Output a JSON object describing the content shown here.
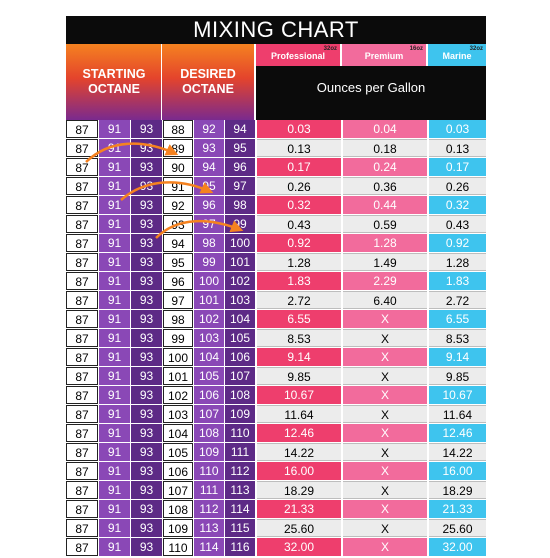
{
  "title": "MIXING CHART",
  "headers": {
    "starting": [
      "STARTING",
      "OCTANE"
    ],
    "desired": [
      "DESIRED",
      "OCTANE"
    ],
    "products": [
      {
        "name": "Professional",
        "size": "32oz",
        "color": "#ee3e6d"
      },
      {
        "name": "Premium",
        "size": "16oz",
        "color": "#f26b9c"
      },
      {
        "name": "Marine",
        "size": "32oz",
        "color": "#3ec4ee"
      }
    ],
    "ounces_label": "Ounces per Gallon"
  },
  "rows": [
    {
      "start": [
        "87",
        "91",
        "93"
      ],
      "desired": [
        "88",
        "92",
        "94"
      ],
      "pro": "0.03",
      "prem": "0.04",
      "mar": "0.03"
    },
    {
      "start": [
        "87",
        "91",
        "93"
      ],
      "desired": [
        "89",
        "93",
        "95"
      ],
      "pro": "0.13",
      "prem": "0.18",
      "mar": "0.13"
    },
    {
      "start": [
        "87",
        "91",
        "93"
      ],
      "desired": [
        "90",
        "94",
        "96"
      ],
      "pro": "0.17",
      "prem": "0.24",
      "mar": "0.17"
    },
    {
      "start": [
        "87",
        "91",
        "93"
      ],
      "desired": [
        "91",
        "95",
        "97"
      ],
      "pro": "0.26",
      "prem": "0.36",
      "mar": "0.26"
    },
    {
      "start": [
        "87",
        "91",
        "93"
      ],
      "desired": [
        "92",
        "96",
        "98"
      ],
      "pro": "0.32",
      "prem": "0.44",
      "mar": "0.32"
    },
    {
      "start": [
        "87",
        "91",
        "93"
      ],
      "desired": [
        "93",
        "97",
        "99"
      ],
      "pro": "0.43",
      "prem": "0.59",
      "mar": "0.43"
    },
    {
      "start": [
        "87",
        "91",
        "93"
      ],
      "desired": [
        "94",
        "98",
        "100"
      ],
      "pro": "0.92",
      "prem": "1.28",
      "mar": "0.92"
    },
    {
      "start": [
        "87",
        "91",
        "93"
      ],
      "desired": [
        "95",
        "99",
        "101"
      ],
      "pro": "1.28",
      "prem": "1.49",
      "mar": "1.28"
    },
    {
      "start": [
        "87",
        "91",
        "93"
      ],
      "desired": [
        "96",
        "100",
        "102"
      ],
      "pro": "1.83",
      "prem": "2.29",
      "mar": "1.83"
    },
    {
      "start": [
        "87",
        "91",
        "93"
      ],
      "desired": [
        "97",
        "101",
        "103"
      ],
      "pro": "2.72",
      "prem": "6.40",
      "mar": "2.72"
    },
    {
      "start": [
        "87",
        "91",
        "93"
      ],
      "desired": [
        "98",
        "102",
        "104"
      ],
      "pro": "6.55",
      "prem": "X",
      "mar": "6.55"
    },
    {
      "start": [
        "87",
        "91",
        "93"
      ],
      "desired": [
        "99",
        "103",
        "105"
      ],
      "pro": "8.53",
      "prem": "X",
      "mar": "8.53"
    },
    {
      "start": [
        "87",
        "91",
        "93"
      ],
      "desired": [
        "100",
        "104",
        "106"
      ],
      "pro": "9.14",
      "prem": "X",
      "mar": "9.14"
    },
    {
      "start": [
        "87",
        "91",
        "93"
      ],
      "desired": [
        "101",
        "105",
        "107"
      ],
      "pro": "9.85",
      "prem": "X",
      "mar": "9.85"
    },
    {
      "start": [
        "87",
        "91",
        "93"
      ],
      "desired": [
        "102",
        "106",
        "108"
      ],
      "pro": "10.67",
      "prem": "X",
      "mar": "10.67"
    },
    {
      "start": [
        "87",
        "91",
        "93"
      ],
      "desired": [
        "103",
        "107",
        "109"
      ],
      "pro": "11.64",
      "prem": "X",
      "mar": "11.64"
    },
    {
      "start": [
        "87",
        "91",
        "93"
      ],
      "desired": [
        "104",
        "108",
        "110"
      ],
      "pro": "12.46",
      "prem": "X",
      "mar": "12.46"
    },
    {
      "start": [
        "87",
        "91",
        "93"
      ],
      "desired": [
        "105",
        "109",
        "111"
      ],
      "pro": "14.22",
      "prem": "X",
      "mar": "14.22"
    },
    {
      "start": [
        "87",
        "91",
        "93"
      ],
      "desired": [
        "106",
        "110",
        "112"
      ],
      "pro": "16.00",
      "prem": "X",
      "mar": "16.00"
    },
    {
      "start": [
        "87",
        "91",
        "93"
      ],
      "desired": [
        "107",
        "111",
        "113"
      ],
      "pro": "18.29",
      "prem": "X",
      "mar": "18.29"
    },
    {
      "start": [
        "87",
        "91",
        "93"
      ],
      "desired": [
        "108",
        "112",
        "114"
      ],
      "pro": "21.33",
      "prem": "X",
      "mar": "21.33"
    },
    {
      "start": [
        "87",
        "91",
        "93"
      ],
      "desired": [
        "109",
        "113",
        "115"
      ],
      "pro": "25.60",
      "prem": "X",
      "mar": "25.60"
    },
    {
      "start": [
        "87",
        "91",
        "93"
      ],
      "desired": [
        "110",
        "114",
        "116"
      ],
      "pro": "32.00",
      "prem": "X",
      "mar": "32.00"
    }
  ],
  "arrow_color": "#f58220"
}
